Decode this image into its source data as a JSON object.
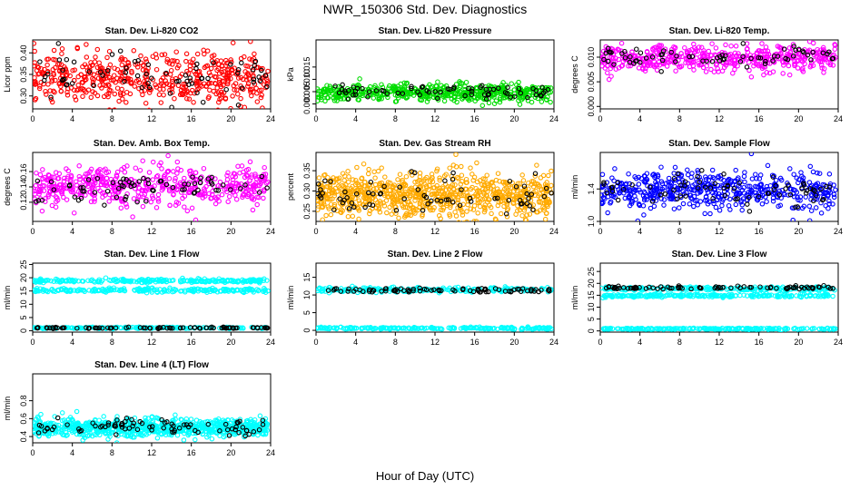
{
  "title": "NWR_150306  Std. Dev. Diagnostics",
  "xlabel": "Hour of Day (UTC)",
  "colors": {
    "black": "#000000",
    "red": "#ff0000",
    "green": "#00dd00",
    "magenta": "#ff00ff",
    "orange": "#ffaa00",
    "blue": "#0000ff",
    "cyan": "#00ffff"
  },
  "chart_data": [
    {
      "type": "scatter",
      "title": "Stan. Dev. Li-820 CO2",
      "ylabel": "Licor ppm",
      "xlim": [
        0,
        24
      ],
      "ylim": [
        0.27,
        0.43
      ],
      "xticks": [
        0,
        4,
        8,
        12,
        16,
        20,
        24
      ],
      "yticks": [
        0.3,
        0.35,
        0.4
      ],
      "ytick_labels": [
        "0.30",
        "0.35",
        "0.40"
      ],
      "series": [
        {
          "color": "red",
          "bands": [
            [
              0.34,
              0.03
            ]
          ],
          "count": 520
        },
        {
          "color": "black",
          "bands": [
            [
              0.345,
              0.025
            ]
          ],
          "count": 70
        }
      ]
    },
    {
      "type": "scatter",
      "title": "Stan. Dev. Li-820 Pressure",
      "ylabel": "kPa",
      "xlim": [
        0,
        24
      ],
      "ylim": [
        -0.002,
        0.026
      ],
      "xticks": [
        0,
        4,
        8,
        12,
        16,
        20,
        24
      ],
      "yticks": [
        0.0,
        0.005,
        0.01,
        0.015
      ],
      "ytick_labels": [
        "0.000",
        "0.005",
        "0.010",
        "0.015"
      ],
      "series": [
        {
          "color": "green",
          "bands": [
            [
              0.0045,
              0.0018
            ]
          ],
          "count": 520
        },
        {
          "color": "black",
          "bands": [
            [
              0.0048,
              0.0014
            ]
          ],
          "count": 70
        }
      ]
    },
    {
      "type": "scatter",
      "title": "Stan. Dev. Li-820 Temp.",
      "ylabel": "degrees C",
      "xlim": [
        0,
        24
      ],
      "ylim": [
        -0.0005,
        0.0135
      ],
      "xticks": [
        0,
        4,
        8,
        12,
        16,
        20,
        24
      ],
      "yticks": [
        0.0,
        0.005,
        0.01
      ],
      "ytick_labels": [
        "0.000",
        "0.005",
        "0.010"
      ],
      "series": [
        {
          "color": "magenta",
          "bands": [
            [
              0.0098,
              0.0013
            ]
          ],
          "count": 480
        },
        {
          "color": "black",
          "bands": [
            [
              0.0098,
              0.0011
            ]
          ],
          "count": 70
        }
      ]
    },
    {
      "type": "scatter",
      "title": "Stan. Dev. Amb. Box Temp.",
      "ylabel": "degrees C",
      "xlim": [
        0,
        24
      ],
      "ylim": [
        0.095,
        0.185
      ],
      "xticks": [
        0,
        4,
        8,
        12,
        16,
        20,
        24
      ],
      "yticks": [
        0.12,
        0.14,
        0.16
      ],
      "ytick_labels": [
        "0.12",
        "0.14",
        "0.16"
      ],
      "series": [
        {
          "color": "magenta",
          "bands": [
            [
              0.14,
              0.013
            ]
          ],
          "count": 520
        },
        {
          "color": "black",
          "bands": [
            [
              0.14,
              0.01
            ]
          ],
          "count": 70
        }
      ]
    },
    {
      "type": "scatter",
      "title": "Stan. Dev. Gas Stream RH",
      "ylabel": "percent",
      "xlim": [
        0,
        24
      ],
      "ylim": [
        0.225,
        0.395
      ],
      "xticks": [
        0,
        4,
        8,
        12,
        16,
        20,
        24
      ],
      "yticks": [
        0.25,
        0.3,
        0.35
      ],
      "ytick_labels": [
        "0.25",
        "0.30",
        "0.35"
      ],
      "series": [
        {
          "color": "orange",
          "bands": [
            [
              0.29,
              0.028
            ]
          ],
          "count": 800
        },
        {
          "color": "black",
          "bands": [
            [
              0.29,
              0.025
            ]
          ],
          "count": 70
        }
      ]
    },
    {
      "type": "scatter",
      "title": "Stan. Dev. Sample Flow",
      "ylabel": "ml/min",
      "xlim": [
        0,
        24
      ],
      "ylim": [
        1.0,
        1.85
      ],
      "xticks": [
        0,
        4,
        8,
        12,
        16,
        20,
        24
      ],
      "yticks": [
        1.0,
        1.4
      ],
      "ytick_labels": [
        "1.0",
        "1.4"
      ],
      "series": [
        {
          "color": "blue",
          "bands": [
            [
              1.38,
              0.12
            ]
          ],
          "count": 520
        },
        {
          "color": "black",
          "bands": [
            [
              1.38,
              0.1
            ]
          ],
          "count": 70
        }
      ]
    },
    {
      "type": "scatter",
      "title": "Stan. Dev. Line 1 Flow",
      "ylabel": "ml/min",
      "xlim": [
        0,
        24
      ],
      "ylim": [
        -0.5,
        25.5
      ],
      "xticks": [
        0,
        4,
        8,
        12,
        16,
        20,
        24
      ],
      "yticks": [
        0,
        5,
        10,
        15,
        20,
        25
      ],
      "ytick_labels": [
        "0",
        "5",
        "10",
        "15",
        "20",
        "25"
      ],
      "series": [
        {
          "color": "cyan",
          "bands": [
            [
              18.8,
              0.35
            ],
            [
              15.3,
              0.35
            ],
            [
              1.1,
              0.15
            ]
          ],
          "count": 660
        },
        {
          "color": "black",
          "bands": [
            [
              1.1,
              0.12
            ]
          ],
          "count": 80
        }
      ]
    },
    {
      "type": "scatter",
      "title": "Stan. Dev. Line 2 Flow",
      "ylabel": "ml/min",
      "xlim": [
        0,
        24
      ],
      "ylim": [
        -0.5,
        19
      ],
      "xticks": [
        0,
        4,
        8,
        12,
        16,
        20,
        24
      ],
      "yticks": [
        0,
        5,
        10,
        15
      ],
      "ytick_labels": [
        "0",
        "5",
        "10",
        "15"
      ],
      "series": [
        {
          "color": "cyan",
          "bands": [
            [
              11.5,
              0.35
            ],
            [
              0.6,
              0.15
            ]
          ],
          "count": 440
        },
        {
          "color": "black",
          "bands": [
            [
              11.3,
              0.3
            ]
          ],
          "count": 80
        }
      ]
    },
    {
      "type": "scatter",
      "title": "Stan. Dev. Line 3 Flow",
      "ylabel": "ml/min",
      "xlim": [
        0,
        24
      ],
      "ylim": [
        -0.5,
        28.5
      ],
      "xticks": [
        0,
        4,
        8,
        12,
        16,
        20,
        24
      ],
      "yticks": [
        0,
        5,
        10,
        15,
        20,
        25
      ],
      "ytick_labels": [
        "0",
        "5",
        "10",
        "15",
        "20",
        "25"
      ],
      "series": [
        {
          "color": "cyan",
          "bands": [
            [
              17.8,
              0.35
            ],
            [
              14.8,
              0.35
            ],
            [
              0.9,
              0.15
            ]
          ],
          "count": 660
        },
        {
          "color": "black",
          "bands": [
            [
              18.2,
              0.35
            ]
          ],
          "count": 80
        }
      ]
    },
    {
      "type": "scatter",
      "title": "Stan. Dev. Line 4 (LT) Flow",
      "ylabel": "ml/min",
      "xlim": [
        0,
        24
      ],
      "ylim": [
        0.33,
        1.1
      ],
      "xticks": [
        0,
        4,
        8,
        12,
        16,
        20,
        24
      ],
      "yticks": [
        0.4,
        0.6,
        0.8
      ],
      "ytick_labels": [
        "0.4",
        "0.6",
        "0.8"
      ],
      "series": [
        {
          "color": "cyan",
          "bands": [
            [
              0.5,
              0.05
            ]
          ],
          "count": 800
        },
        {
          "color": "black",
          "bands": [
            [
              0.5,
              0.045
            ]
          ],
          "count": 80
        }
      ]
    }
  ]
}
